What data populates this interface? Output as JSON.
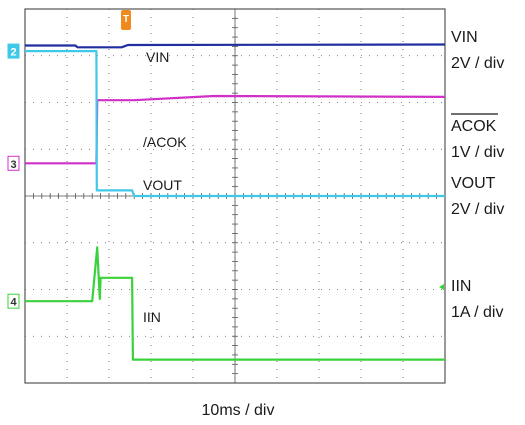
{
  "chart_data": {
    "type": "line",
    "title": "",
    "xlabel": "10ms / div",
    "grid": true,
    "x_divisions": 10,
    "y_divisions": 8,
    "trigger_marker": "T",
    "colors": {
      "ch1": "#1f2fa0",
      "ch2": "#40c8e8",
      "ch3": "#d030c8",
      "ch4": "#3ad23a",
      "grid": "#555555"
    },
    "series": [
      {
        "name": "VIN",
        "channel": "ch1",
        "trace_label": "VIN",
        "scale_label": "2V / div",
        "x": [
          0,
          1.2,
          1.25,
          2.3,
          2.45,
          10
        ],
        "y_div": [
          3.22,
          3.22,
          3.18,
          3.18,
          3.23,
          3.24
        ]
      },
      {
        "name": "ACOK",
        "channel": "ch3",
        "trace_label": "/ACOK",
        "scale_label": "1V / div",
        "overline": true,
        "x": [
          0,
          1.7,
          1.72,
          2.6,
          4.5,
          10
        ],
        "y_div": [
          0.7,
          0.7,
          2.05,
          2.05,
          2.14,
          2.12
        ]
      },
      {
        "name": "VOUT",
        "channel": "ch2",
        "trace_label": "VOUT",
        "scale_label": "2V / div",
        "x": [
          0,
          1.7,
          1.71,
          2.55,
          2.6,
          10
        ],
        "y_div": [
          3.1,
          3.1,
          0.12,
          0.12,
          0.0,
          0.0
        ]
      },
      {
        "name": "IIN",
        "channel": "ch4",
        "trace_label": "IIN",
        "scale_label": "1A / div",
        "x": [
          0,
          1.6,
          1.72,
          1.78,
          1.8,
          2.55,
          2.57,
          10
        ],
        "y_div": [
          -2.25,
          -2.25,
          -1.1,
          -2.2,
          -1.75,
          -1.75,
          -3.5,
          -3.5
        ]
      }
    ],
    "channel_markers": [
      {
        "label": "3",
        "channel": "ch3"
      },
      {
        "label": "2",
        "channel": "ch2"
      },
      {
        "label": "4",
        "channel": "ch4"
      }
    ]
  }
}
